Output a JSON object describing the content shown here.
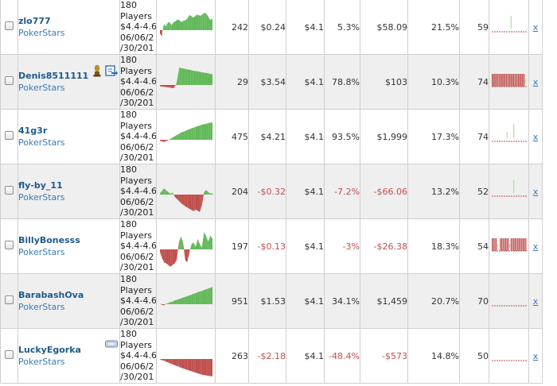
{
  "colors": {
    "name": "#1e5a8c",
    "site": "#3a7ab8",
    "positive": "#63b95a",
    "negative": "#c0504d"
  },
  "rows": [
    {
      "name": "zlo777",
      "site": "PokerStars",
      "game": [
        "180",
        "Players",
        "$4.4-4.6",
        "06/06/2",
        "/30/201"
      ],
      "games": "242",
      "avg_profit": "$0.24",
      "avg_stake": "$4.1",
      "roi": "5.3%",
      "profit": "$58.09",
      "itm": "21.5%",
      "ability": "59",
      "spark": [
        -0.5,
        -1,
        1,
        0.6,
        1.2,
        1.3,
        0.8,
        1.3,
        1.4,
        1.7,
        1.6,
        1.3,
        1.5,
        1.6,
        1.8,
        2.4,
        2.3,
        2.0,
        2.2,
        2.5,
        2.4,
        2.3,
        2.6,
        2.8,
        2.6,
        2.1,
        1.6,
        1.9
      ],
      "dist": [
        0,
        0,
        0,
        0,
        0,
        0,
        0,
        0,
        0,
        0,
        0,
        0,
        0,
        0,
        0.9,
        0,
        0,
        0,
        0,
        0,
        0,
        0,
        0,
        0,
        0,
        0
      ],
      "icons": []
    },
    {
      "name": "Denis8511111",
      "site": "PokerStars",
      "game": [
        "180",
        "Players",
        "$4.4-4.6",
        "06/06/2",
        "/30/201"
      ],
      "games": "29",
      "avg_profit": "$3.54",
      "avg_stake": "$4.1",
      "roi": "78.8%",
      "profit": "$103",
      "itm": "10.3%",
      "ability": "74",
      "spark": [
        -0.3,
        -0.4,
        -0.5,
        -0.6,
        -0.7,
        -0.8,
        0.4,
        4.4,
        4.2,
        4.1,
        3.9,
        3.8,
        3.6,
        3.5,
        3.4,
        3.2,
        3.1,
        3.0,
        2.8,
        2.7
      ],
      "dist": [
        -1,
        -1,
        -1,
        -1,
        -1,
        -1,
        -1,
        -1,
        -1,
        -1,
        -1,
        -1,
        -1,
        -1,
        -1,
        -1,
        -1,
        -1,
        -1,
        0.3
      ],
      "icons": [
        "trophy-icon",
        "export-icon"
      ]
    },
    {
      "name": "41g3r",
      "site": "PokerStars",
      "game": [
        "180",
        "Players",
        "$4.4-4.6",
        "06/06/2",
        "/30/201"
      ],
      "games": "475",
      "avg_profit": "$4.21",
      "avg_stake": "$4.1",
      "roi": "93.5%",
      "profit": "$1,999",
      "itm": "17.3%",
      "ability": "74",
      "spark": [
        -0.3,
        -0.4,
        -0.6,
        -0.3,
        -0.1,
        0.3,
        0.6,
        0.9,
        1.3,
        1.5,
        1.9,
        2.1,
        2.3,
        2.6,
        2.8,
        3.0,
        3.2,
        3.4,
        3.6,
        3.8,
        4.0,
        4.1,
        4.2,
        4.4,
        4.5,
        4.6
      ],
      "dist": [
        0,
        0,
        0,
        0,
        0,
        0,
        0,
        0,
        0,
        0,
        0,
        0.45,
        0,
        0,
        0,
        0,
        1,
        0,
        0,
        0,
        0,
        0,
        0,
        0,
        0,
        0
      ],
      "icons": []
    },
    {
      "name": "fly-by_11",
      "site": "PokerStars",
      "game": [
        "180",
        "Players",
        "$4.4-4.6",
        "06/06/2",
        "/30/201"
      ],
      "games": "204",
      "avg_profit": "-$0.32",
      "avg_stake": "$4.1",
      "roi": "-7.2%",
      "profit": "-$66.06",
      "itm": "13.2%",
      "ability": "52",
      "spark": [
        0.3,
        0.9,
        1.5,
        1.0,
        0.6,
        0.2,
        0.5,
        -0.5,
        -1.0,
        -1.5,
        -2.0,
        -2.4,
        -2.8,
        -3.1,
        -3.4,
        -3.7,
        -4.0,
        -3.6,
        -3.9,
        -4.2,
        -2.5,
        0.6,
        1.1,
        0.6,
        0.2,
        0.4
      ],
      "dist": [
        0,
        0,
        0,
        0,
        0,
        0,
        0,
        0,
        0,
        0,
        0,
        0,
        0,
        0,
        0,
        0,
        0.9,
        0,
        0,
        0,
        0,
        0,
        0,
        0,
        0,
        0
      ],
      "icons": []
    },
    {
      "name": "BillyBonesss",
      "site": "PokerStars",
      "game": [
        "180",
        "Players",
        "$4.4-4.6",
        "06/06/2",
        "/30/201"
      ],
      "games": "197",
      "avg_profit": "-$0.13",
      "avg_stake": "$4.1",
      "roi": "-3%",
      "profit": "-$26.38",
      "itm": "18.3%",
      "ability": "54",
      "spark": [
        -0.3,
        -1.0,
        -1.5,
        -1.6,
        -1.8,
        -2.0,
        -1.8,
        -1.6,
        -1.2,
        0.8,
        1.5,
        0.8,
        -1.2,
        -1.5,
        -0.4,
        0.6,
        0.8,
        0.3,
        1.2,
        0.6,
        0.2,
        2.0,
        1.5,
        0.9,
        1.6,
        1.2
      ],
      "dist": [
        -1,
        -1,
        -1,
        -1,
        0.25,
        0,
        -1,
        -1,
        -1,
        -1,
        -1,
        -1,
        -1,
        0.25,
        -1,
        -1,
        -1,
        -1,
        -1,
        -1,
        -1,
        -1,
        -1,
        -1,
        -1,
        -1
      ],
      "icons": []
    },
    {
      "name": "BarabashOva",
      "site": "PokerStars",
      "game": [
        "180",
        "Players",
        "$4.4-4.6",
        "06/06/2",
        "/30/201"
      ],
      "games": "951",
      "avg_profit": "$1.53",
      "avg_stake": "$4.1",
      "roi": "34.1%",
      "profit": "$1,459",
      "itm": "20.7%",
      "ability": "70",
      "spark": [
        0.1,
        -0.2,
        -0.3,
        0.1,
        0.3,
        0.6,
        0.7,
        1.0,
        1.2,
        1.4,
        1.6,
        1.8,
        2.0,
        2.2,
        2.4,
        2.6,
        2.9,
        3.0,
        3.3,
        3.5,
        3.6,
        3.9,
        4.1,
        4.3,
        4.5,
        4.8
      ],
      "dist": [
        0,
        0,
        0,
        0,
        0,
        0,
        0,
        0,
        0,
        0,
        0,
        0,
        0,
        0,
        0,
        0,
        0,
        0,
        0,
        0,
        0,
        0,
        0,
        0,
        0,
        0
      ],
      "icons": []
    },
    {
      "name": "LuckyEgorka",
      "site": "PokerStars",
      "game": [
        "180",
        "Players",
        "$4.4-4.6",
        "06/06/2",
        "/30/201"
      ],
      "games": "263",
      "avg_profit": "-$2.18",
      "avg_stake": "$4.1",
      "roi": "-48.4%",
      "profit": "-$573",
      "itm": "14.8%",
      "ability": "50",
      "spark": [
        -0.1,
        -0.3,
        -0.5,
        -0.8,
        -1.0,
        -1.3,
        -1.5,
        -1.8,
        -2.0,
        -2.2,
        -2.5,
        -2.7,
        -2.9,
        -3.1,
        -3.3,
        -3.5,
        -3.7,
        -3.9,
        -4.1,
        -4.3,
        -4.5,
        -4.6,
        -4.7,
        -4.8,
        -4.9,
        -5.0
      ],
      "dist": [
        0,
        0,
        0,
        0,
        0,
        0,
        0,
        0,
        0,
        0,
        0,
        0,
        0,
        0,
        0,
        0,
        0,
        0,
        0,
        0,
        0,
        0,
        0,
        0,
        0,
        0
      ],
      "icons": [
        "ticket-icon"
      ]
    }
  ],
  "remove_label": "x"
}
